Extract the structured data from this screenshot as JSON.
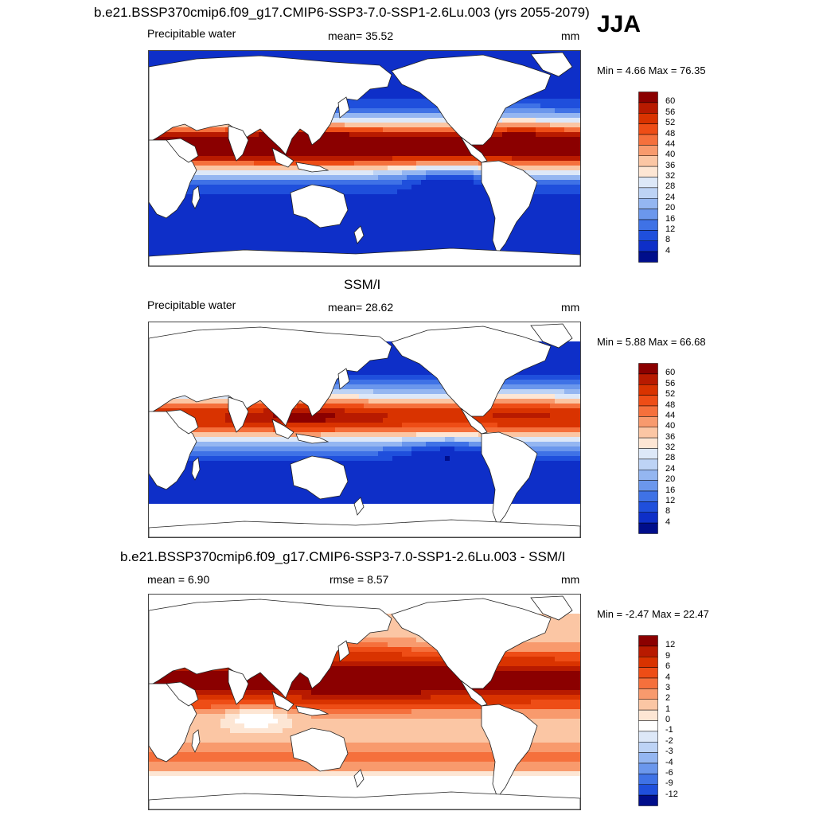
{
  "header": {
    "title": "b.e21.BSSP370cmip6.f09_g17.CMIP6-SSP3-7.0-SSP1-2.6Lu.003 (yrs 2055-2079)",
    "season": "JJA"
  },
  "chart_data": [
    {
      "type": "heatmap",
      "title": "",
      "variable": "Precipitable water",
      "mean_text": "mean=  35.52",
      "units": "mm",
      "minmax_text": "Min =   4.66 Max =  76.35",
      "levels": [
        "60",
        "56",
        "52",
        "48",
        "44",
        "40",
        "36",
        "32",
        "28",
        "24",
        "20",
        "16",
        "12",
        "8",
        "4"
      ],
      "colors": [
        "#8b0000",
        "#b81a00",
        "#d93300",
        "#ee4d16",
        "#f5703c",
        "#f89a6d",
        "#fbc6a4",
        "#fde6d4",
        "#dde8f8",
        "#bdd3f5",
        "#94b6f1",
        "#6b97ec",
        "#3f72e6",
        "#1f4fdc",
        "#0e2fc8",
        "#000e8b"
      ],
      "min": 4.66,
      "max": 76.35,
      "mean": 35.52,
      "masked": false
    },
    {
      "type": "heatmap",
      "title": "SSM/I",
      "variable": "Precipitable water",
      "mean_text": "mean=  28.62",
      "units": "mm",
      "minmax_text": "Min =   5.88 Max =  66.68",
      "levels": [
        "60",
        "56",
        "52",
        "48",
        "44",
        "40",
        "36",
        "32",
        "28",
        "24",
        "20",
        "16",
        "12",
        "8",
        "4"
      ],
      "colors": [
        "#8b0000",
        "#b81a00",
        "#d93300",
        "#ee4d16",
        "#f5703c",
        "#f89a6d",
        "#fbc6a4",
        "#fde6d4",
        "#dde8f8",
        "#bdd3f5",
        "#94b6f1",
        "#6b97ec",
        "#3f72e6",
        "#1f4fdc",
        "#0e2fc8",
        "#000e8b"
      ],
      "min": 5.88,
      "max": 66.68,
      "mean": 28.62,
      "masked": true
    },
    {
      "type": "heatmap",
      "title": "b.e21.BSSP370cmip6.f09_g17.CMIP6-SSP3-7.0-SSP1-2.6Lu.003 - SSM/I",
      "variable": "",
      "mean_text": "mean =   6.90",
      "rmse_text": "rmse =   8.57",
      "units": "mm",
      "minmax_text": "Min =  -2.47 Max =  22.47",
      "levels": [
        "12",
        "9",
        "6",
        "4",
        "3",
        "2",
        "1",
        "0",
        "-1",
        "-2",
        "-3",
        "-4",
        "-6",
        "-9",
        "-12"
      ],
      "colors": [
        "#8b0000",
        "#b81a00",
        "#d93300",
        "#ee4d16",
        "#f5703c",
        "#f89a6d",
        "#fbc6a4",
        "#fde6d4",
        "#ffffff",
        "#dde8f8",
        "#bdd3f5",
        "#94b6f1",
        "#6b97ec",
        "#3f72e6",
        "#1f4fdc",
        "#000e8b"
      ],
      "min": -2.47,
      "max": 22.47,
      "mean": 6.9,
      "rmse": 8.57,
      "masked": true
    }
  ]
}
